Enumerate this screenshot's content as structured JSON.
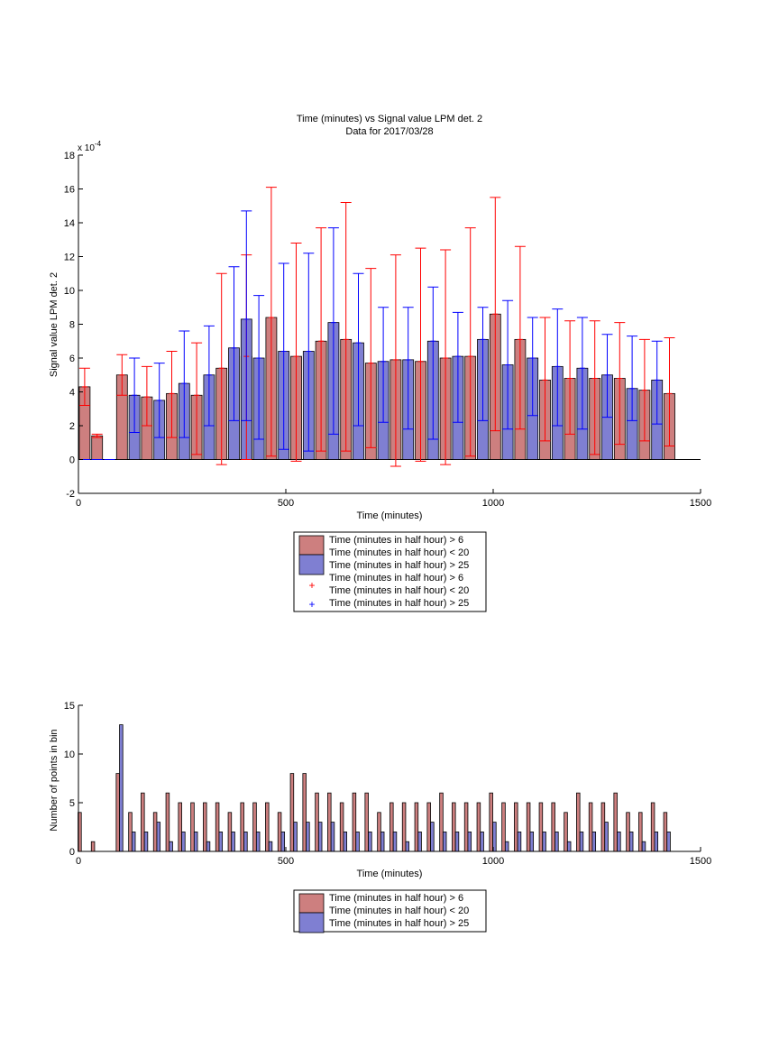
{
  "chart_data": [
    {
      "type": "bar",
      "title": "Time (minutes) vs Signal value LPM det. 2",
      "subtitle": "Data for 2017/03/28",
      "xlabel": "Time (minutes)",
      "ylabel": "Signal value LPM det. 2",
      "y_exponent_label": "x 10",
      "y_exponent_power": "-4",
      "xlim": [
        0,
        1500
      ],
      "ylim": [
        -2,
        18
      ],
      "x_ticks": [
        0,
        500,
        1000,
        1500
      ],
      "y_ticks": [
        -2,
        0,
        2,
        4,
        6,
        8,
        10,
        12,
        14,
        16,
        18
      ],
      "x_tick_labels": [
        "0",
        "500",
        "1000",
        "1500"
      ],
      "y_tick_labels": [
        "-2",
        "0",
        "2",
        "4",
        "6",
        "8",
        "10",
        "12",
        "14",
        "16",
        "18"
      ],
      "grid": false,
      "legend_position": "below",
      "legend": [
        {
          "label": "Time (minutes in half hour) > 6",
          "kind": "patch",
          "color": "#cd7f7f"
        },
        {
          "label": "Time (minutes in half hour) < 20",
          "kind": "line",
          "color": "#000000"
        },
        {
          "label": "Time (minutes in half hour) > 25",
          "kind": "patch",
          "color": "#7f7fd2"
        },
        {
          "label": "Time (minutes in half hour) > 6",
          "kind": "blank",
          "color": "#ff0000"
        },
        {
          "label": "Time (minutes in half hour) < 20",
          "kind": "marker",
          "color": "#ff0000"
        },
        {
          "label": "Time (minutes in half hour) > 25",
          "kind": "marker",
          "color": "#0000ff"
        }
      ],
      "series": [
        {
          "color": "#cd7f7f",
          "error_color": "#ff0000",
          "x": [
            15,
            45,
            105,
            165,
            225,
            285,
            345,
            405,
            465,
            525,
            585,
            645,
            705,
            765,
            825,
            885,
            945,
            1005,
            1065,
            1125,
            1185,
            1245,
            1305,
            1365,
            1425
          ],
          "values": [
            4.3,
            1.4,
            5.0,
            3.7,
            3.9,
            3.8,
            5.4,
            6.1,
            8.4,
            6.1,
            7.0,
            7.1,
            5.7,
            5.9,
            5.8,
            6.0,
            6.1,
            8.6,
            7.1,
            4.7,
            4.8,
            4.8,
            4.8,
            4.1,
            3.9
          ],
          "err_low": [
            3.2,
            1.3,
            3.8,
            2.0,
            1.3,
            0.3,
            -0.3,
            0.0,
            0.2,
            -0.1,
            0.5,
            0.5,
            0.7,
            -0.4,
            -0.1,
            -0.3,
            0.2,
            1.7,
            1.8,
            1.1,
            1.5,
            0.3,
            0.9,
            1.1,
            0.8
          ],
          "err_high": [
            5.4,
            1.5,
            6.2,
            5.5,
            6.4,
            6.9,
            11.0,
            12.1,
            16.1,
            12.8,
            13.7,
            15.2,
            11.3,
            12.1,
            12.5,
            12.4,
            13.7,
            15.5,
            12.6,
            8.4,
            8.2,
            8.2,
            8.1,
            7.1,
            7.2
          ]
        },
        {
          "color": "#7f7fd2",
          "error_color": "#0000ff",
          "x": [
            15,
            45,
            75,
            135,
            195,
            255,
            315,
            375,
            405,
            435,
            495,
            555,
            615,
            675,
            735,
            795,
            855,
            915,
            975,
            1035,
            1095,
            1155,
            1215,
            1275,
            1335,
            1395
          ],
          "values": [
            0.0,
            0.0,
            0.0,
            3.8,
            3.5,
            4.5,
            5.0,
            6.6,
            8.3,
            6.0,
            6.4,
            6.4,
            8.1,
            6.9,
            5.8,
            5.9,
            7.0,
            6.1,
            7.1,
            5.6,
            6.0,
            5.5,
            5.4,
            5.0,
            4.2,
            4.7
          ],
          "err_low": [
            0.0,
            0.0,
            0.0,
            1.6,
            1.3,
            1.3,
            2.0,
            2.3,
            2.3,
            1.2,
            0.6,
            0.5,
            1.5,
            2.0,
            2.2,
            1.8,
            1.2,
            2.2,
            2.3,
            1.8,
            2.6,
            2.0,
            1.8,
            2.5,
            2.3,
            2.1
          ],
          "err_high": [
            0.0,
            0.0,
            0.0,
            6.0,
            5.7,
            7.6,
            7.9,
            11.4,
            14.7,
            9.7,
            11.6,
            12.2,
            13.7,
            11.0,
            9.0,
            9.0,
            10.2,
            8.7,
            9.0,
            9.4,
            8.4,
            8.9,
            8.4,
            7.4,
            7.3,
            7.0
          ]
        }
      ]
    },
    {
      "type": "bar",
      "xlabel": "Time (minutes)",
      "ylabel": "Number of points in bin",
      "xlim": [
        0,
        1500
      ],
      "ylim": [
        0,
        15
      ],
      "x_ticks": [
        0,
        500,
        1000,
        1500
      ],
      "y_ticks": [
        0,
        5,
        10,
        15
      ],
      "x_tick_labels": [
        "0",
        "500",
        "1000",
        "1500"
      ],
      "y_tick_labels": [
        "0",
        "5",
        "10",
        "15"
      ],
      "grid": false,
      "legend_position": "below",
      "legend": [
        {
          "label": "Time (minutes in half hour) > 6",
          "kind": "patch",
          "color": "#cd7f7f"
        },
        {
          "label": "Time (minutes in half hour) < 20",
          "kind": "line",
          "color": "#000000"
        },
        {
          "label": "Time (minutes in half hour) > 25",
          "kind": "patch",
          "color": "#7f7fd2"
        }
      ],
      "series": [
        {
          "color": "#cd7f7f",
          "x": [
            3,
            35,
            95,
            125,
            155,
            185,
            215,
            245,
            275,
            305,
            335,
            365,
            395,
            425,
            455,
            485,
            515,
            545,
            575,
            605,
            635,
            665,
            695,
            725,
            755,
            785,
            815,
            845,
            875,
            905,
            935,
            965,
            995,
            1025,
            1055,
            1085,
            1115,
            1145,
            1175,
            1205,
            1235,
            1265,
            1295,
            1325,
            1355,
            1385,
            1415
          ],
          "values": [
            4,
            1,
            8,
            4,
            6,
            4,
            6,
            5,
            5,
            5,
            5,
            4,
            5,
            5,
            5,
            4,
            8,
            8,
            6,
            6,
            5,
            6,
            6,
            4,
            5,
            5,
            5,
            5,
            6,
            5,
            5,
            5,
            6,
            5,
            5,
            5,
            5,
            5,
            4,
            6,
            5,
            5,
            6,
            4,
            4,
            5,
            4
          ],
          "bar_width": 8
        },
        {
          "color": "#7f7fd2",
          "x": [
            103,
            133,
            163,
            193,
            223,
            253,
            283,
            313,
            343,
            373,
            403,
            433,
            463,
            493,
            523,
            553,
            583,
            613,
            643,
            673,
            703,
            733,
            763,
            793,
            823,
            853,
            883,
            913,
            943,
            973,
            1003,
            1033,
            1063,
            1093,
            1123,
            1153,
            1183,
            1213,
            1243,
            1273,
            1303,
            1333,
            1363,
            1393,
            1423
          ],
          "values": [
            13,
            2,
            2,
            3,
            1,
            2,
            2,
            1,
            2,
            2,
            2,
            2,
            1,
            2,
            3,
            3,
            3,
            3,
            2,
            2,
            2,
            2,
            2,
            1,
            2,
            3,
            2,
            2,
            2,
            2,
            3,
            1,
            2,
            2,
            2,
            2,
            1,
            2,
            2,
            3,
            2,
            2,
            1,
            2,
            2
          ],
          "bar_width": 8
        }
      ]
    }
  ]
}
